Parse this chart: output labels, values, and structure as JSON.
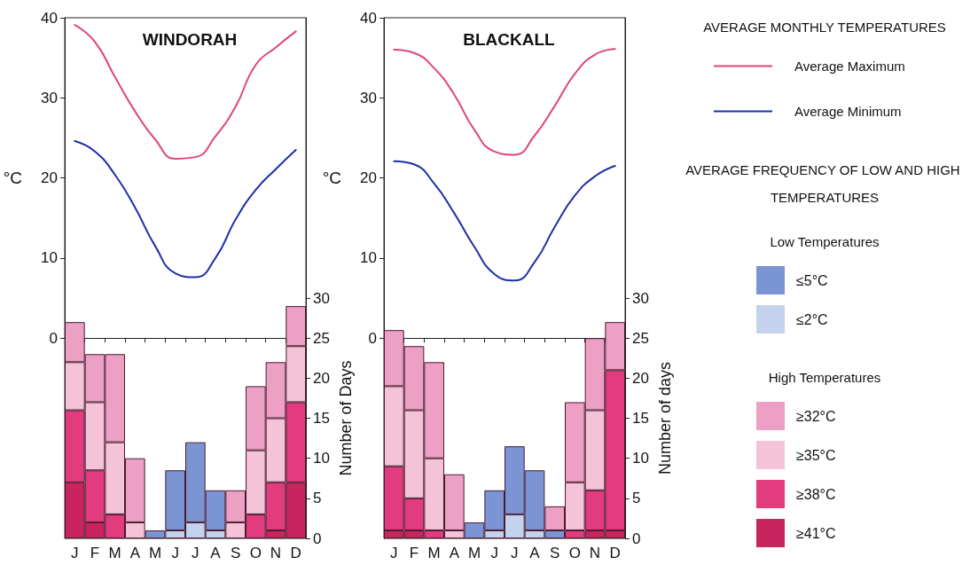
{
  "chart_data": [
    {
      "type": "bar",
      "title": "WINDORAH",
      "ylabel": "°C",
      "y2label": "Number of Days",
      "categories": [
        "J",
        "F",
        "M",
        "A",
        "M",
        "J",
        "J",
        "A",
        "S",
        "O",
        "N",
        "D"
      ],
      "ylim": [
        -25,
        40
      ],
      "yticks": [
        0,
        10,
        20,
        30,
        40
      ],
      "y2lim": [
        0,
        65
      ],
      "y2ticks": [
        0,
        5,
        10,
        15,
        20,
        25,
        30
      ],
      "stacked": true,
      "marker": "none",
      "line_style": "solid",
      "series": [
        {
          "type": "line",
          "color": "#e0447c",
          "values": [
            39.1,
            37.0,
            32.6,
            28.3,
            24.8,
            22.4,
            22.6,
            25.2,
            28.9,
            34.1,
            36.3,
            38.3
          ]
        },
        {
          "type": "line",
          "color": "#1c2fa8",
          "values": [
            24.6,
            23.3,
            20.4,
            16.3,
            11.5,
            8.1,
            7.6,
            10.0,
            14.8,
            18.5,
            21.1,
            23.5
          ]
        },
        {
          "type": "bar",
          "axis": "y2",
          "color": "#c5d2ee",
          "values": [
            null,
            null,
            null,
            null,
            null,
            1,
            2,
            1,
            null,
            null,
            null,
            null
          ]
        },
        {
          "type": "bar",
          "axis": "y2",
          "color": "#7b95d4",
          "values": [
            null,
            null,
            null,
            null,
            1,
            7.5,
            10,
            5,
            null,
            null,
            null,
            null
          ]
        },
        {
          "type": "bar",
          "axis": "y2",
          "color": "#c8245e",
          "values": [
            7,
            2,
            null,
            null,
            null,
            null,
            null,
            null,
            null,
            null,
            1,
            7
          ]
        },
        {
          "type": "bar",
          "axis": "y2",
          "color": "#e23c7f",
          "values": [
            9,
            6.5,
            3,
            null,
            null,
            null,
            null,
            null,
            null,
            3,
            6,
            10
          ]
        },
        {
          "type": "bar",
          "axis": "y2",
          "color": "#f4c3d8",
          "values": [
            6,
            8.5,
            9,
            2,
            null,
            null,
            null,
            null,
            2,
            8,
            8,
            7
          ]
        },
        {
          "type": "bar",
          "axis": "y2",
          "color": "#eca0c4",
          "values": [
            5,
            6,
            11,
            8,
            null,
            null,
            null,
            null,
            4,
            8,
            7,
            5
          ]
        }
      ]
    },
    {
      "type": "bar",
      "title": "BLACKALL",
      "ylabel": "°C",
      "y2label": "Number of days",
      "categories": [
        "J",
        "F",
        "M",
        "A",
        "M",
        "J",
        "J",
        "A",
        "S",
        "O",
        "N",
        "D"
      ],
      "ylim": [
        -25,
        40
      ],
      "yticks": [
        0,
        10,
        20,
        30,
        40
      ],
      "y2lim": [
        0,
        65
      ],
      "y2ticks": [
        0,
        5,
        10,
        15,
        20,
        25,
        30
      ],
      "stacked": true,
      "marker": "none",
      "line_style": "solid",
      "legend": "right",
      "legend_title": "AVERAGE MONTHLY TEMPERATURES",
      "annotations": [
        "AVERAGE FREQUENCY OF LOW AND HIGH TEMPERATURES",
        "Low Temperatures",
        "High Temperatures"
      ],
      "series": [
        {
          "type": "line",
          "name": "Average Maximum",
          "color": "#e0447c",
          "values": [
            36.0,
            35.6,
            33.7,
            30.4,
            26.0,
            23.3,
            22.9,
            25.3,
            29.0,
            33.0,
            35.4,
            36.1
          ]
        },
        {
          "type": "line",
          "name": "Average Minimum",
          "color": "#1c2fa8",
          "values": [
            22.1,
            21.7,
            19.3,
            15.6,
            11.4,
            8.0,
            7.2,
            9.5,
            13.9,
            17.8,
            20.2,
            21.5
          ]
        },
        {
          "type": "bar",
          "axis": "y2",
          "name": "≤2°C",
          "color": "#c5d2ee",
          "values": [
            null,
            null,
            null,
            null,
            null,
            1,
            3,
            1,
            null,
            null,
            null,
            null
          ]
        },
        {
          "type": "bar",
          "axis": "y2",
          "name": "≤5°C",
          "color": "#7b95d4",
          "values": [
            null,
            null,
            null,
            null,
            2,
            5,
            8.5,
            7.5,
            1,
            null,
            null,
            null
          ]
        },
        {
          "type": "bar",
          "axis": "y2",
          "name": "≥41°C",
          "color": "#c8245e",
          "values": [
            1,
            1,
            null,
            null,
            null,
            null,
            null,
            null,
            null,
            null,
            1,
            1
          ]
        },
        {
          "type": "bar",
          "axis": "y2",
          "name": "≥38°C",
          "color": "#e23c7f",
          "values": [
            8,
            4,
            1,
            null,
            null,
            null,
            null,
            null,
            null,
            1,
            5,
            20
          ]
        },
        {
          "type": "bar",
          "axis": "y2",
          "name": "≥35°C",
          "color": "#f4c3d8",
          "values": [
            10,
            11,
            9,
            1,
            null,
            null,
            null,
            null,
            null,
            6,
            10,
            null
          ]
        },
        {
          "type": "bar",
          "axis": "y2",
          "name": "≥32°C",
          "color": "#eca0c4",
          "values": [
            7,
            8,
            12,
            7,
            null,
            null,
            null,
            null,
            3,
            10,
            9,
            6
          ]
        }
      ]
    }
  ]
}
